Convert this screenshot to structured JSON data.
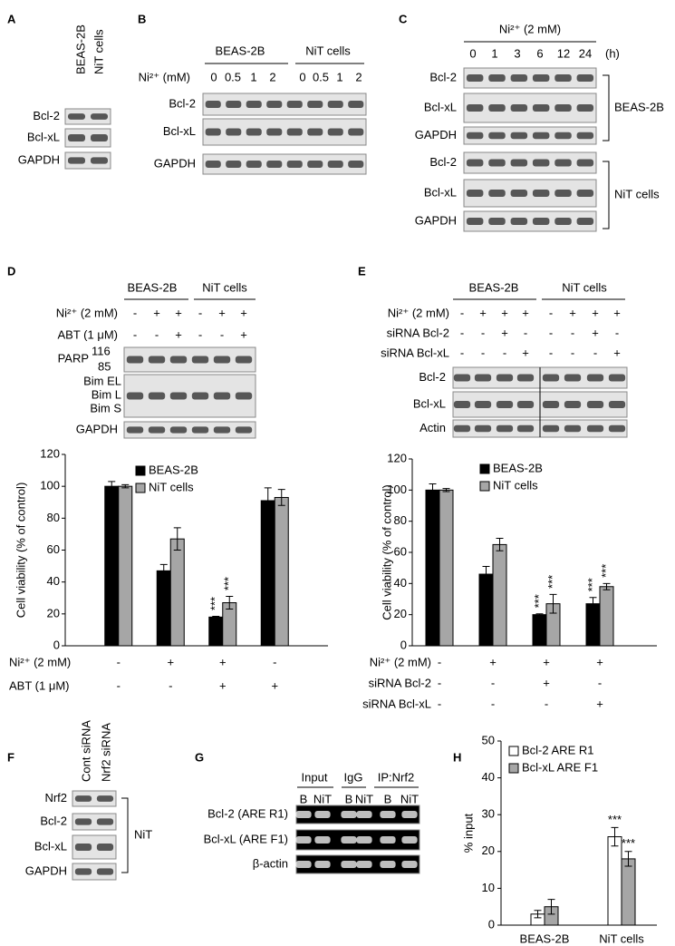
{
  "panels": {
    "A": {
      "label": "A",
      "columns": [
        "BEAS-2B",
        "NiT cells"
      ],
      "rows": [
        "Bcl-2",
        "Bcl-xL",
        "GAPDH"
      ]
    },
    "B": {
      "label": "B",
      "groups": [
        "BEAS-2B",
        "NiT cells"
      ],
      "dose_label": "Ni²⁺ (mM)",
      "doses": [
        "0",
        "0.5",
        "1",
        "2",
        "0",
        "0.5",
        "1",
        "2"
      ],
      "rows": [
        "Bcl-2",
        "Bcl-xL",
        "GAPDH"
      ]
    },
    "C": {
      "label": "C",
      "treatment": "Ni²⁺ (2 mM)",
      "times": [
        "0",
        "1",
        "3",
        "6",
        "12",
        "24"
      ],
      "time_unit": "(h)",
      "rows": [
        "Bcl-2",
        "Bcl-xL",
        "GAPDH",
        "Bcl-2",
        "Bcl-xL",
        "GAPDH"
      ],
      "brackets": [
        "BEAS-2B",
        "NiT cells"
      ]
    },
    "D": {
      "label": "D",
      "groups": [
        "BEAS-2B",
        "NiT cells"
      ],
      "conditions": [
        {
          "label": "Ni²⁺ (2 mM)",
          "signs": [
            "-",
            "+",
            "+",
            "-",
            "+",
            "+"
          ]
        },
        {
          "label": "ABT (1 μM)",
          "signs": [
            "-",
            "-",
            "+",
            "-",
            "-",
            "+"
          ]
        }
      ],
      "parp": {
        "label": "PARP",
        "sizes": [
          "116",
          "85"
        ]
      },
      "bim": [
        "Bim EL",
        "Bim L",
        "Bim S"
      ],
      "loading": "GAPDH"
    },
    "E": {
      "label": "E",
      "groups": [
        "BEAS-2B",
        "NiT cells"
      ],
      "conditions": [
        {
          "label": "Ni²⁺ (2 mM)",
          "signs": [
            "-",
            "+",
            "+",
            "+",
            "-",
            "+",
            "+",
            "+"
          ]
        },
        {
          "label": "siRNA Bcl-2",
          "signs": [
            "-",
            "-",
            "+",
            "-",
            "-",
            "-",
            "+",
            "-"
          ]
        },
        {
          "label": "siRNA Bcl-xL",
          "signs": [
            "-",
            "-",
            "-",
            "+",
            "-",
            "-",
            "-",
            "+"
          ]
        }
      ],
      "rows": [
        "Bcl-2",
        "Bcl-xL",
        "Actin"
      ]
    },
    "F": {
      "label": "F",
      "columns": [
        "Cont siRNA",
        "Nrf2 siRNA"
      ],
      "rows": [
        "Nrf2",
        "Bcl-2",
        "Bcl-xL",
        "GAPDH"
      ],
      "bracket": "NiT"
    },
    "G": {
      "label": "G",
      "groups": [
        "Input",
        "IgG",
        "IP:Nrf2"
      ],
      "lanes": [
        "B",
        "NiT",
        "B",
        "NiT",
        "B",
        "NiT"
      ],
      "rows": [
        "Bcl-2 (ARE R1)",
        "Bcl-xL (ARE F1)",
        "β-actin"
      ]
    },
    "H": {
      "label": "H"
    }
  },
  "chart_data": [
    {
      "type": "bar",
      "y_label": "Cell viability (% of control)",
      "ylim": [
        0,
        120
      ],
      "yticks": [
        0,
        20,
        40,
        60,
        80,
        100,
        120
      ],
      "categories": [
        null,
        null,
        null,
        null
      ],
      "conditions": [
        {
          "label": "Ni²⁺ (2 mM)",
          "signs": [
            "-",
            "+",
            "+",
            "-"
          ]
        },
        {
          "label": "ABT (1 μM)",
          "signs": [
            "-",
            "-",
            "+",
            "+"
          ]
        }
      ],
      "series": [
        {
          "name": "BEAS-2B",
          "color": "#000000",
          "values": [
            100,
            47,
            18,
            91
          ],
          "errors": [
            3,
            4,
            0.5,
            8
          ],
          "significance": [
            null,
            null,
            "***",
            null
          ]
        },
        {
          "name": "NiT cells",
          "color": "#a6a6a6",
          "values": [
            100,
            67,
            27,
            93
          ],
          "errors": [
            1,
            7,
            4,
            5
          ],
          "significance": [
            null,
            null,
            "***",
            null
          ]
        }
      ]
    },
    {
      "type": "bar",
      "y_label": "Cell viability (% of control)",
      "ylim": [
        0,
        120
      ],
      "yticks": [
        0,
        20,
        40,
        60,
        80,
        100,
        120
      ],
      "categories": [
        null,
        null,
        null,
        null
      ],
      "conditions": [
        {
          "label": "Ni²⁺ (2 mM)",
          "signs": [
            "-",
            "+",
            "+",
            "+"
          ]
        },
        {
          "label": "siRNA Bcl-2",
          "signs": [
            "-",
            "-",
            "+",
            "-"
          ]
        },
        {
          "label": "siRNA Bcl-xL",
          "signs": [
            "-",
            "-",
            "-",
            "+"
          ]
        }
      ],
      "series": [
        {
          "name": "BEAS-2B",
          "color": "#000000",
          "values": [
            100,
            46,
            20,
            27
          ],
          "errors": [
            4,
            5,
            0.5,
            4
          ],
          "significance": [
            null,
            null,
            "***",
            "***"
          ]
        },
        {
          "name": "NiT cells",
          "color": "#a6a6a6",
          "values": [
            100,
            65,
            27,
            38
          ],
          "errors": [
            1,
            4,
            6,
            2
          ],
          "significance": [
            null,
            null,
            "***",
            "***"
          ]
        }
      ]
    },
    {
      "type": "bar",
      "y_label": "% input",
      "ylim": [
        0,
        50
      ],
      "yticks": [
        0,
        10,
        20,
        30,
        40,
        50
      ],
      "categories": [
        "BEAS-2B",
        "NiT cells"
      ],
      "series": [
        {
          "name": "Bcl-2 ARE R1",
          "color": "#ffffff",
          "values": [
            3,
            24
          ],
          "errors": [
            1,
            2.5
          ],
          "significance": [
            null,
            "***"
          ]
        },
        {
          "name": "Bcl-xL ARE F1",
          "color": "#a6a6a6",
          "values": [
            5,
            18
          ],
          "errors": [
            2,
            2
          ],
          "significance": [
            null,
            "***"
          ]
        }
      ]
    }
  ]
}
